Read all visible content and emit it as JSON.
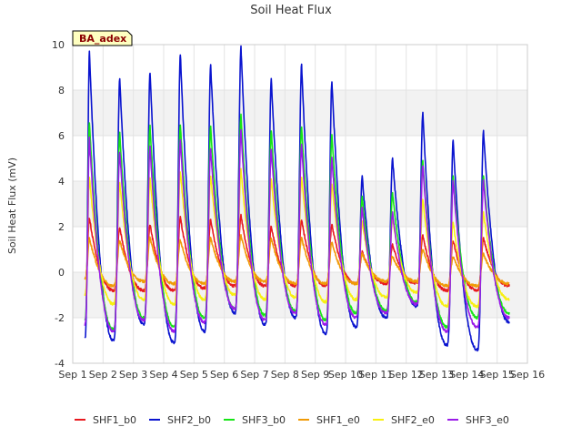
{
  "chart_data": {
    "type": "line",
    "title": "Soil Heat Flux",
    "xlabel": "",
    "ylabel": "Soil Heat Flux (mV)",
    "xlim": [
      1,
      16
    ],
    "ylim": [
      -4,
      10
    ],
    "x_ticks": [
      {
        "value": 1,
        "label": "Sep 1"
      },
      {
        "value": 2,
        "label": "Sep 2"
      },
      {
        "value": 3,
        "label": "Sep 3"
      },
      {
        "value": 4,
        "label": "Sep 4"
      },
      {
        "value": 5,
        "label": "Sep 5"
      },
      {
        "value": 6,
        "label": "Sep 6"
      },
      {
        "value": 7,
        "label": "Sep 7"
      },
      {
        "value": 8,
        "label": "Sep 8"
      },
      {
        "value": 9,
        "label": "Sep 9"
      },
      {
        "value": 10,
        "label": "Sep 10"
      },
      {
        "value": 11,
        "label": "Sep 11"
      },
      {
        "value": 12,
        "label": "Sep 12"
      },
      {
        "value": 13,
        "label": "Sep 13"
      },
      {
        "value": 14,
        "label": "Sep 14"
      },
      {
        "value": 15,
        "label": "Sep 15"
      },
      {
        "value": 16,
        "label": "Sep 16"
      }
    ],
    "y_ticks": [
      -4,
      -2,
      0,
      2,
      4,
      6,
      8,
      10
    ],
    "y_bands": [
      [
        -2,
        0
      ],
      [
        2,
        4
      ],
      [
        6,
        8
      ]
    ],
    "badge": "BA_adex",
    "data_range_days": [
      1.4,
      15.4
    ],
    "peak_day_offset": 0.55,
    "trough_day_offset": 0.35,
    "series": [
      {
        "name": "SHF1_b0",
        "color": "#e8191f",
        "daily_max": [
          2.4,
          2.0,
          2.1,
          2.4,
          2.3,
          2.5,
          2.0,
          2.3,
          2.1,
          0.9,
          1.2,
          1.6,
          1.4,
          1.5
        ],
        "daily_min": [
          -0.6,
          -0.8,
          -0.8,
          -0.8,
          -0.7,
          -0.6,
          -0.6,
          -0.6,
          -0.6,
          -0.5,
          -0.5,
          -0.5,
          -0.8,
          -0.8
        ],
        "end_value": -0.6
      },
      {
        "name": "SHF2_b0",
        "color": "#0a14cf",
        "daily_max": [
          9.7,
          8.5,
          8.8,
          9.6,
          9.1,
          9.9,
          8.5,
          9.1,
          8.4,
          4.2,
          5.0,
          7.0,
          5.8,
          6.2
        ],
        "daily_min": [
          -3.2,
          -3.0,
          -2.3,
          -3.1,
          -2.6,
          -1.8,
          -2.3,
          -2.0,
          -2.7,
          -2.4,
          -2.0,
          -1.5,
          -3.2,
          -3.4
        ],
        "end_value": -2.2
      },
      {
        "name": "SHF3_b0",
        "color": "#16e516",
        "daily_max": [
          6.6,
          6.1,
          6.4,
          6.5,
          6.4,
          6.9,
          6.2,
          6.4,
          6.0,
          3.3,
          3.5,
          4.9,
          4.2,
          4.2
        ],
        "daily_min": [
          -2.4,
          -2.5,
          -2.0,
          -2.4,
          -2.0,
          -1.6,
          -1.9,
          -1.7,
          -2.1,
          -1.8,
          -1.7,
          -1.3,
          -2.4,
          -2.0
        ],
        "end_value": -1.8
      },
      {
        "name": "SHF1_e0",
        "color": "#f09a07",
        "daily_max": [
          1.5,
          1.4,
          1.5,
          1.4,
          1.5,
          1.6,
          1.5,
          1.5,
          1.3,
          0.8,
          0.7,
          1.0,
          0.7,
          0.8
        ],
        "daily_min": [
          -0.6,
          -0.6,
          -0.4,
          -0.5,
          -0.5,
          -0.4,
          -0.4,
          -0.5,
          -0.5,
          -0.5,
          -0.4,
          -0.4,
          -0.6,
          -0.6
        ],
        "end_value": -0.5
      },
      {
        "name": "SHF2_e0",
        "color": "#f8f010",
        "daily_max": [
          4.2,
          3.9,
          4.1,
          4.4,
          4.2,
          4.5,
          4.1,
          4.2,
          3.9,
          2.2,
          2.4,
          3.2,
          2.2,
          2.6
        ],
        "daily_min": [
          -1.3,
          -1.4,
          -1.2,
          -1.4,
          -1.2,
          -1.0,
          -1.2,
          -1.1,
          -1.3,
          -1.2,
          -1.1,
          -0.9,
          -1.5,
          -1.5
        ],
        "end_value": -1.2
      },
      {
        "name": "SHF3_e0",
        "color": "#9a1be8",
        "daily_max": [
          5.9,
          5.3,
          5.5,
          5.8,
          5.4,
          6.2,
          5.4,
          5.6,
          5.0,
          2.8,
          2.6,
          4.7,
          4.0,
          4.0
        ],
        "daily_min": [
          -2.6,
          -2.6,
          -2.1,
          -2.6,
          -2.2,
          -1.6,
          -2.1,
          -1.8,
          -2.3,
          -2.0,
          -1.8,
          -1.4,
          -2.6,
          -2.4
        ],
        "end_value": -2.0
      }
    ]
  }
}
